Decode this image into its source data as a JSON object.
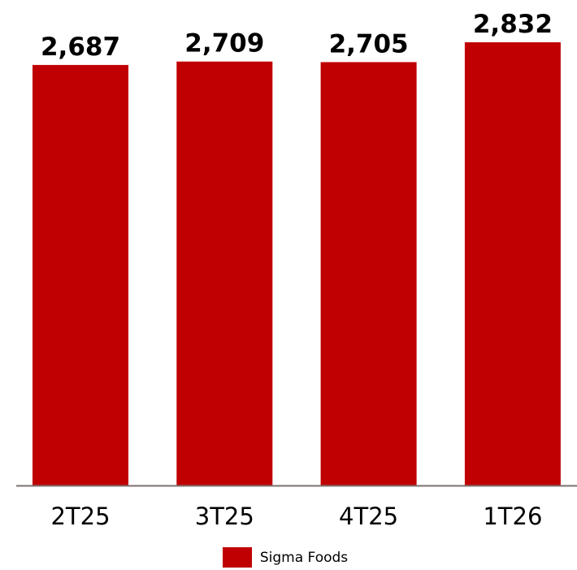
{
  "chart_data": {
    "type": "bar",
    "categories": [
      "2T25",
      "3T25",
      "4T25",
      "1T26"
    ],
    "series": [
      {
        "name": "Sigma Foods",
        "values": [
          2687,
          2709,
          2705,
          2832
        ],
        "color": "#C00000"
      }
    ],
    "value_labels": [
      "2,687",
      "2,709",
      "2,705",
      "2,832"
    ],
    "ylim": [
      0,
      2832
    ],
    "grid": false,
    "legend_position": "bottom",
    "axis_color": "#7F6F6F"
  }
}
